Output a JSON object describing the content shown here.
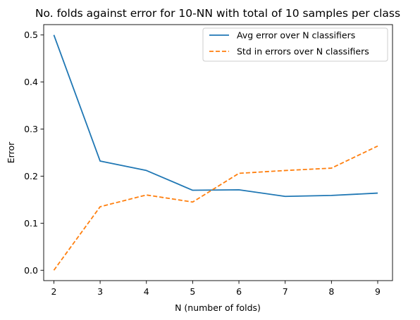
{
  "chart_data": {
    "type": "line",
    "title": "No. folds against error for 10-NN with total of 10 samples per class",
    "xlabel": "N (number of folds)",
    "ylabel": "Error",
    "x": [
      2,
      3,
      4,
      5,
      6,
      7,
      8,
      9
    ],
    "xlim": [
      1.78,
      9.32
    ],
    "ylim": [
      -0.022,
      0.522
    ],
    "xticks": [
      2,
      3,
      4,
      5,
      6,
      7,
      8,
      9
    ],
    "xtick_labels": [
      "2",
      "3",
      "4",
      "5",
      "6",
      "7",
      "8",
      "9"
    ],
    "yticks": [
      0.0,
      0.1,
      0.2,
      0.3,
      0.4,
      0.5
    ],
    "ytick_labels": [
      "0.0",
      "0.1",
      "0.2",
      "0.3",
      "0.4",
      "0.5"
    ],
    "grid": false,
    "legend_position": "top-right",
    "series": [
      {
        "name": "Avg error over N classifiers",
        "values": [
          0.5,
          0.232,
          0.212,
          0.17,
          0.171,
          0.157,
          0.159,
          0.164
        ],
        "color": "#1f77b4",
        "style": "solid"
      },
      {
        "name": "Std in errors over N classifiers",
        "values": [
          0.0,
          0.135,
          0.16,
          0.145,
          0.206,
          0.212,
          0.217,
          0.264
        ],
        "color": "#ff7f0e",
        "style": "dashed"
      }
    ]
  }
}
